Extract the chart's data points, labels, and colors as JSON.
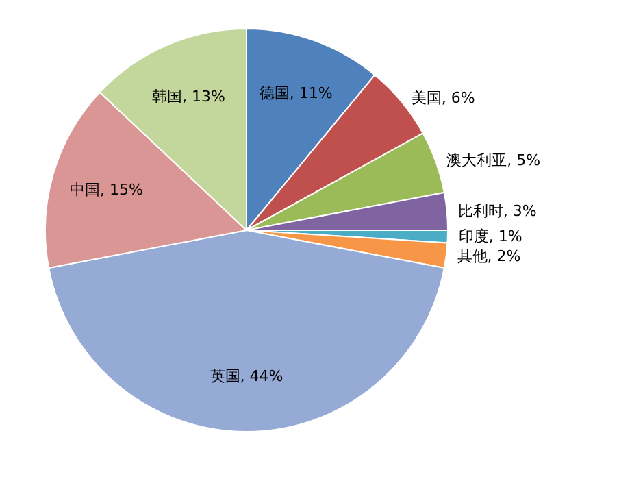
{
  "chart_data": {
    "type": "pie",
    "categories": [
      "德国",
      "美国",
      "澳大利亚",
      "比利时",
      "印度",
      "其他",
      "英国",
      "中国",
      "韩国"
    ],
    "values": [
      11,
      6,
      5,
      3,
      1,
      2,
      44,
      15,
      13
    ],
    "value_labels": [
      "11%",
      "6%",
      "5%",
      "3%",
      "1%",
      "2%",
      "44%",
      "15%",
      "13%"
    ],
    "colors": [
      "#4f81bd",
      "#c0504d",
      "#9bbb59",
      "#8064a2",
      "#4bacc6",
      "#f79646",
      "#95abd6",
      "#d99694",
      "#c3d69b"
    ],
    "legend": false
  }
}
